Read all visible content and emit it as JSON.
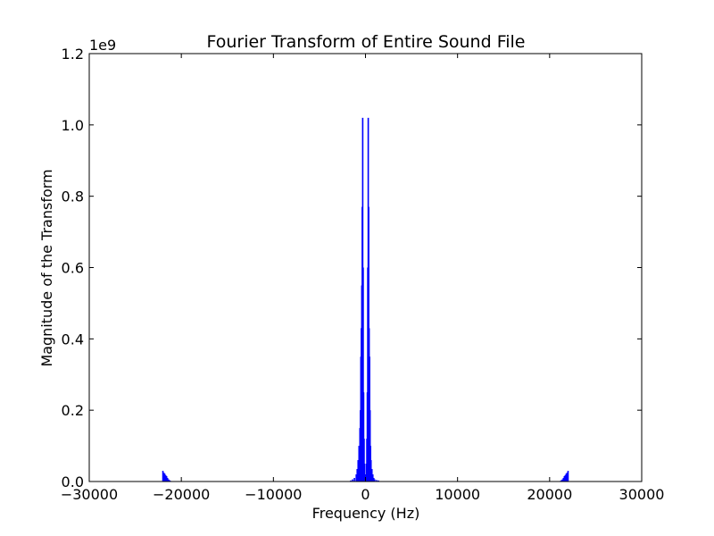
{
  "chart_data": {
    "type": "line",
    "title": "Fourier Transform of Entire Sound File",
    "xlabel": "Frequency (Hz)",
    "ylabel": "Magnitude of the Transform",
    "y_offset_label": "1e9",
    "xlim": [
      -30000,
      30000
    ],
    "ylim": [
      0,
      1.2
    ],
    "y_scale_multiplier": 1000000000,
    "x_ticks": [
      -30000,
      -20000,
      -10000,
      0,
      10000,
      20000,
      30000
    ],
    "x_tick_labels": [
      "−30000",
      "−20000",
      "−10000",
      "0",
      "10000",
      "20000",
      "30000"
    ],
    "y_ticks": [
      0.0,
      0.2,
      0.4,
      0.6,
      0.8,
      1.0,
      1.2
    ],
    "y_tick_labels": [
      "0.0",
      "0.2",
      "0.4",
      "0.6",
      "0.8",
      "1.0",
      "1.2"
    ],
    "grid": false,
    "series": [
      {
        "color": "#0000ff",
        "x": [
          -22000,
          -21900,
          -21800,
          -21700,
          -21600,
          -21500,
          -21400,
          -21300,
          -21200,
          -21100,
          -1600,
          -1400,
          -1200,
          -1000,
          -900,
          -800,
          -700,
          -600,
          -550,
          -500,
          -450,
          -400,
          -350,
          -300,
          -250,
          -200,
          -150,
          -100,
          -50,
          0,
          50,
          100,
          150,
          200,
          250,
          300,
          350,
          400,
          450,
          500,
          550,
          600,
          700,
          800,
          900,
          1000,
          1200,
          1400,
          1600,
          21100,
          21200,
          21300,
          21400,
          21500,
          21600,
          21700,
          21800,
          21900,
          22000
        ],
        "values": [
          0.03,
          0.025,
          0.022,
          0.018,
          0.015,
          0.01,
          0.006,
          0.004,
          0.002,
          0.001,
          0.003,
          0.006,
          0.01,
          0.02,
          0.035,
          0.06,
          0.1,
          0.15,
          0.2,
          0.35,
          0.43,
          0.55,
          0.77,
          1.02,
          0.6,
          0.25,
          0.12,
          0.05,
          0.02,
          0.01,
          0.02,
          0.05,
          0.12,
          0.25,
          0.6,
          1.02,
          0.77,
          0.43,
          0.35,
          0.2,
          0.1,
          0.06,
          0.035,
          0.02,
          0.01,
          0.006,
          0.004,
          0.003,
          0.001,
          0.001,
          0.002,
          0.004,
          0.006,
          0.01,
          0.015,
          0.018,
          0.022,
          0.025,
          0.03
        ]
      }
    ]
  }
}
